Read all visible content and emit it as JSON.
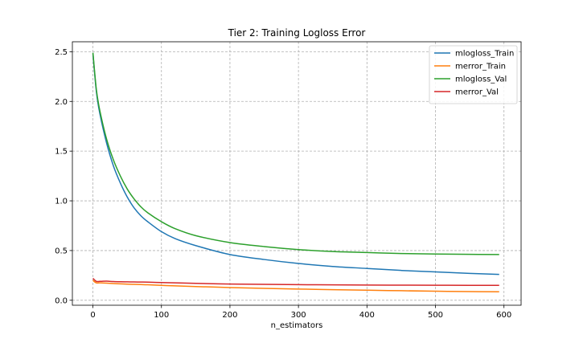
{
  "chart_data": {
    "type": "line",
    "title": "Tier 2: Training Logloss Error",
    "xlabel": "n_estimators",
    "ylabel": "",
    "xlim": [
      -30,
      625
    ],
    "ylim": [
      -0.05,
      2.6
    ],
    "xticks": [
      0,
      100,
      200,
      300,
      400,
      500,
      600
    ],
    "yticks": [
      0.0,
      0.5,
      1.0,
      1.5,
      2.0,
      2.5
    ],
    "ytick_labels": [
      "0.0",
      "0.5",
      "1.0",
      "1.5",
      "2.0",
      "2.5"
    ],
    "grid": true,
    "legend_position": "top-right",
    "x": [
      0,
      5,
      10,
      20,
      30,
      40,
      50,
      60,
      70,
      80,
      100,
      120,
      150,
      200,
      250,
      300,
      350,
      400,
      450,
      500,
      550,
      593
    ],
    "series": [
      {
        "name": "mlogloss_Train",
        "color": "#1f77b4",
        "values": [
          2.48,
          2.1,
          1.88,
          1.58,
          1.35,
          1.18,
          1.04,
          0.93,
          0.85,
          0.79,
          0.69,
          0.62,
          0.55,
          0.46,
          0.41,
          0.37,
          0.34,
          0.32,
          0.3,
          0.285,
          0.27,
          0.26
        ]
      },
      {
        "name": "merror_Train",
        "color": "#ff7f0e",
        "values": [
          0.2,
          0.175,
          0.175,
          0.172,
          0.168,
          0.165,
          0.162,
          0.16,
          0.158,
          0.156,
          0.15,
          0.145,
          0.138,
          0.128,
          0.12,
          0.113,
          0.107,
          0.101,
          0.096,
          0.091,
          0.087,
          0.085
        ]
      },
      {
        "name": "mlogloss_Val",
        "color": "#2ca02c",
        "values": [
          2.49,
          2.12,
          1.91,
          1.62,
          1.41,
          1.25,
          1.12,
          1.02,
          0.94,
          0.88,
          0.79,
          0.72,
          0.65,
          0.58,
          0.54,
          0.51,
          0.49,
          0.48,
          0.47,
          0.465,
          0.462,
          0.46
        ]
      },
      {
        "name": "merror_Val",
        "color": "#d62728",
        "values": [
          0.22,
          0.19,
          0.19,
          0.192,
          0.188,
          0.186,
          0.185,
          0.184,
          0.183,
          0.182,
          0.178,
          0.175,
          0.17,
          0.163,
          0.16,
          0.157,
          0.155,
          0.153,
          0.152,
          0.151,
          0.15,
          0.15
        ]
      }
    ]
  }
}
